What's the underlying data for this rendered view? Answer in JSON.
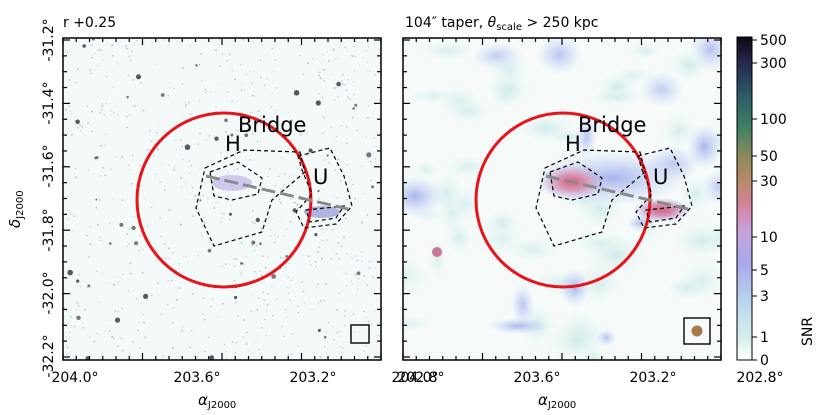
{
  "panels": [
    {
      "title": "r +0.25",
      "labels": {
        "H": "H",
        "U": "U",
        "bridge": "Bridge"
      }
    },
    {
      "title_prefix": "104″ taper, ",
      "title_theta": "θ",
      "title_theta_sub": "scale",
      "title_suffix": " > 250 kpc",
      "labels": {
        "H": "H",
        "U": "U",
        "bridge": "Bridge"
      }
    }
  ],
  "axes": {
    "xlabel_main": "α",
    "xlabel_sub": "J2000",
    "ylabel_main": "δ",
    "ylabel_sub": "J2000",
    "x_ticks": [
      "204.0°",
      "203.6°",
      "203.2°",
      "202.8°"
    ],
    "y_ticks": [
      "-31.2°",
      "-31.4°",
      "-31.6°",
      "-31.8°",
      "-32.0°",
      "-32.2°"
    ]
  },
  "colorbar": {
    "label": "SNR",
    "ticks": [
      "500",
      "300",
      "100",
      "50",
      "30",
      "10",
      "5",
      "3",
      "1",
      "0"
    ]
  },
  "colors": {
    "circle": "#e8141a",
    "contour": "#000000",
    "bridge_line": "#8a8a8a",
    "beam": "#a8784a"
  },
  "chart_data": {
    "type": "image",
    "x_axis": {
      "label": "α_J2000",
      "ticks": [
        204.0,
        203.6,
        203.2,
        202.8
      ],
      "unit": "deg"
    },
    "y_axis": {
      "label": "δ_J2000",
      "ticks": [
        -31.2,
        -31.4,
        -31.6,
        -31.8,
        -32.0,
        -32.2
      ],
      "unit": "deg"
    },
    "colorbar": {
      "label": "SNR",
      "scale": "nonlinear",
      "ticks": [
        0,
        1,
        3,
        5,
        10,
        30,
        50,
        100,
        300,
        500
      ]
    },
    "panels": [
      "r +0.25",
      "104″ taper, θ_scale > 250 kpc"
    ]
  }
}
